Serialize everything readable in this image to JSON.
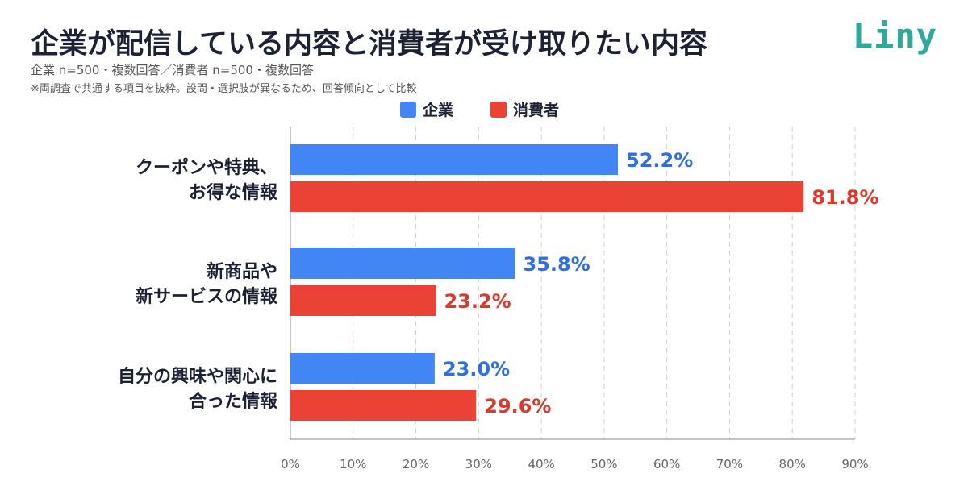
{
  "header": {
    "title": "企業が配信している内容と消費者が受け取りたい内容",
    "subtitle": "企業 n=500・複数回答／消費者 n=500・複数回答",
    "note": "※両調査で共通する項目を抜粋。設問・選択肢が異なるため、回答傾向として比較",
    "logo": "Liny"
  },
  "colors": {
    "company": "#4285f4",
    "consumer": "#ea4335",
    "company_label": "#2f6fe0",
    "consumer_label": "#d93a2e"
  },
  "chart_data": {
    "type": "bar",
    "orientation": "horizontal",
    "categories": [
      [
        "クーポンや特典、",
        "お得な情報"
      ],
      [
        "新商品や",
        "新サービスの情報"
      ],
      [
        "自分の興味や関心に",
        "合った情報"
      ]
    ],
    "series": [
      {
        "name": "企業",
        "values": [
          52.2,
          35.8,
          23.0
        ],
        "labels": [
          "52.2%",
          "35.8%",
          "23.0%"
        ]
      },
      {
        "name": "消費者",
        "values": [
          81.8,
          23.2,
          29.6
        ],
        "labels": [
          "81.8%",
          "23.2%",
          "29.6%"
        ]
      }
    ],
    "xlim": [
      0,
      90
    ],
    "xticks": [
      "0%",
      "10%",
      "20%",
      "30%",
      "40%",
      "50%",
      "60%",
      "70%",
      "80%",
      "90%"
    ],
    "grid": true,
    "legend": "top-center"
  }
}
